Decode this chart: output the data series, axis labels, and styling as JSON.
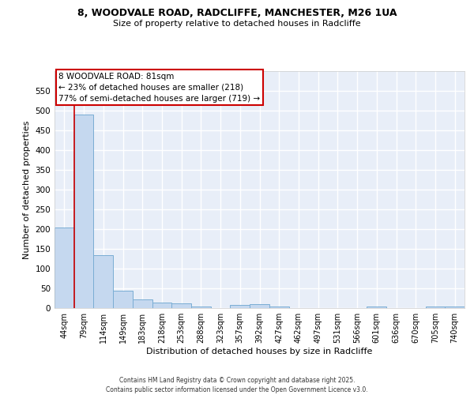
{
  "title1": "8, WOODVALE ROAD, RADCLIFFE, MANCHESTER, M26 1UA",
  "title2": "Size of property relative to detached houses in Radcliffe",
  "xlabel": "Distribution of detached houses by size in Radcliffe",
  "ylabel": "Number of detached properties",
  "categories": [
    "44sqm",
    "79sqm",
    "114sqm",
    "149sqm",
    "183sqm",
    "218sqm",
    "253sqm",
    "288sqm",
    "323sqm",
    "357sqm",
    "392sqm",
    "427sqm",
    "462sqm",
    "497sqm",
    "531sqm",
    "566sqm",
    "601sqm",
    "636sqm",
    "670sqm",
    "705sqm",
    "740sqm"
  ],
  "bar_values": [
    205,
    490,
    135,
    45,
    22,
    14,
    12,
    4,
    1,
    9,
    10,
    4,
    1,
    1,
    1,
    1,
    5,
    1,
    1,
    5,
    4
  ],
  "bar_color": "#c5d8ef",
  "bar_edge_color": "#7aadd4",
  "red_line_x": 0.5,
  "annotation_text": "8 WOODVALE ROAD: 81sqm\n← 23% of detached houses are smaller (218)\n77% of semi-detached houses are larger (719) →",
  "annotation_box_color": "white",
  "annotation_edge_color": "#cc0000",
  "ylim": [
    0,
    600
  ],
  "yticks": [
    0,
    50,
    100,
    150,
    200,
    250,
    300,
    350,
    400,
    450,
    500,
    550
  ],
  "bg_color": "#e8eef8",
  "grid_color": "white",
  "footer1": "Contains HM Land Registry data © Crown copyright and database right 2025.",
  "footer2": "Contains public sector information licensed under the Open Government Licence v3.0."
}
